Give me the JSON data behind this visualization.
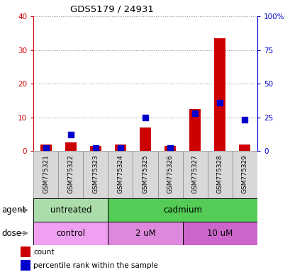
{
  "title": "GDS5179 / 24931",
  "samples": [
    "GSM775321",
    "GSM775322",
    "GSM775323",
    "GSM775324",
    "GSM775325",
    "GSM775326",
    "GSM775327",
    "GSM775328",
    "GSM775329"
  ],
  "counts": [
    2,
    2.5,
    1.5,
    2,
    7,
    1.5,
    12.5,
    33.5,
    2
  ],
  "percentiles": [
    2,
    12,
    2,
    2,
    25,
    2,
    28,
    36,
    23
  ],
  "ylim_left": [
    0,
    40
  ],
  "ylim_right": [
    0,
    100
  ],
  "yticks_left": [
    0,
    10,
    20,
    30,
    40
  ],
  "yticks_right": [
    0,
    25,
    50,
    75,
    100
  ],
  "left_tick_labels": [
    "0",
    "10",
    "20",
    "30",
    "40"
  ],
  "right_tick_labels": [
    "0",
    "25",
    "50",
    "75",
    "100%"
  ],
  "left_color": "#cc0000",
  "right_color": "#0000cc",
  "bar_color": "#cc0000",
  "dot_color": "#0000cc",
  "agent_groups": [
    {
      "label": "untreated",
      "start": 0,
      "end": 3,
      "color": "#aaddaa"
    },
    {
      "label": "cadmium",
      "start": 3,
      "end": 9,
      "color": "#55cc55"
    }
  ],
  "dose_groups": [
    {
      "label": "control",
      "start": 0,
      "end": 3,
      "color": "#f0a0f0"
    },
    {
      "label": "2 uM",
      "start": 3,
      "end": 6,
      "color": "#dd88dd"
    },
    {
      "label": "10 uM",
      "start": 6,
      "end": 9,
      "color": "#cc66cc"
    }
  ],
  "agent_label": "agent",
  "dose_label": "dose",
  "legend_count": "count",
  "legend_pct": "percentile rank within the sample",
  "grid_color": "#888888",
  "bar_width": 0.45,
  "dot_size": 28
}
